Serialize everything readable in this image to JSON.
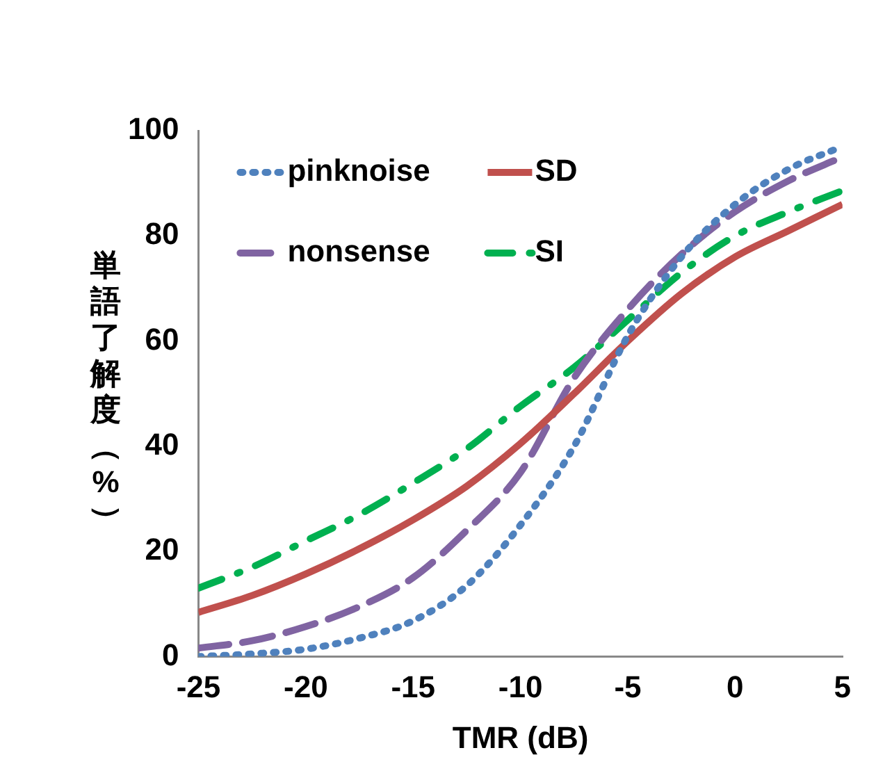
{
  "chart_data": {
    "type": "line",
    "xlabel": "TMR (dB)",
    "ylabel": "単語了解度（%）",
    "x": [
      -25,
      -22.5,
      -20,
      -17.5,
      -15,
      -12.5,
      -10,
      -7.5,
      -5,
      -2.5,
      0,
      2.5,
      5
    ],
    "series": [
      {
        "name": "pinknoise",
        "color": "#4f81bd",
        "line_style": "dotted",
        "values": [
          0,
          0.5,
          1.4,
          3.5,
          6.8,
          13.5,
          25,
          40,
          61,
          76,
          86,
          92.7,
          97
        ]
      },
      {
        "name": "SD",
        "color": "#c0504d",
        "line_style": "solid",
        "values": [
          8.4,
          11.6,
          15.7,
          20.5,
          26,
          32.4,
          40.5,
          50,
          60,
          69,
          76,
          81,
          86
        ]
      },
      {
        "name": "nonsense",
        "color": "#8064a2",
        "line_style": "dashed",
        "values": [
          1.6,
          3,
          5.7,
          9.5,
          15,
          24,
          35,
          53,
          66,
          76.5,
          84.6,
          90.5,
          95
        ]
      },
      {
        "name": "SI",
        "color": "#00b050",
        "line_style": "dashdot",
        "values": [
          13,
          17,
          22,
          27,
          33,
          39.5,
          47.6,
          55,
          64,
          73,
          80,
          84.6,
          88.6
        ]
      }
    ],
    "xlim": [
      -25,
      5
    ],
    "xticks": [
      -25,
      -20,
      -15,
      -10,
      -5,
      0,
      5
    ],
    "ylim": [
      0,
      100
    ],
    "yticks": [
      0,
      20,
      40,
      60,
      80,
      100
    ],
    "grid": false,
    "legend": "top left",
    "marker": "none"
  }
}
